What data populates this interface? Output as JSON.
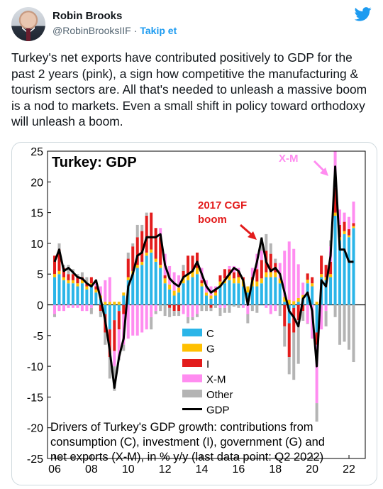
{
  "tweet": {
    "author_name": "Robin Brooks",
    "handle": "@RobinBrooksIIF",
    "separator": "·",
    "follow_label": "Takip et",
    "text": "Turkey's net exports have contributed positively to GDP for the past 2 years (pink), a sign how competitive the manufacturing & tourism sectors are. All that's needed to unleash a massive boom is a nod to markets. Even a small shift in policy toward orthodoxy will unleash a boom.",
    "icons": {
      "logo": "twitter-bird-icon",
      "avatar": "avatar-photo"
    },
    "colors": {
      "link": "#1d9bf0",
      "logo": "#1d9bf0"
    }
  },
  "chart_data": {
    "type": "bar",
    "title": "Turkey: GDP",
    "ylim": [
      -25,
      25
    ],
    "yticks": [
      25,
      20,
      15,
      10,
      5,
      0,
      -5,
      -10,
      -15,
      -20,
      -25
    ],
    "xticks": [
      "06",
      "08",
      "10",
      "12",
      "14",
      "16",
      "18",
      "20",
      "22"
    ],
    "x_range": [
      2006.0,
      2022.5
    ],
    "legend": {
      "placement": "bottom-left",
      "items": [
        {
          "label": "C",
          "color": "#2bb5e8"
        },
        {
          "label": "G",
          "color": "#ffc000"
        },
        {
          "label": "I",
          "color": "#e31c1c"
        },
        {
          "label": "X-M",
          "color": "#ff8cf0"
        },
        {
          "label": "Other",
          "color": "#b4b4b4"
        },
        {
          "label": "GDP",
          "color": "#000000"
        }
      ]
    },
    "annotations": [
      {
        "text": "X-M",
        "color": "#ff8cf0"
      },
      {
        "text": "2017 CGF",
        "color": "#e31c1c"
      },
      {
        "text": "boom",
        "color": "#e31c1c"
      }
    ],
    "caption_lines": [
      "Drivers of Turkey's GDP growth: contributions from",
      "consumption (C), investment (I), government (G) and",
      "net exports (X-M), in % y/y (last data point: Q2 2022)"
    ],
    "x": [
      2006.0,
      2006.25,
      2006.5,
      2006.75,
      2007.0,
      2007.25,
      2007.5,
      2007.75,
      2008.0,
      2008.25,
      2008.5,
      2008.75,
      2009.0,
      2009.25,
      2009.5,
      2009.75,
      2010.0,
      2010.25,
      2010.5,
      2010.75,
      2011.0,
      2011.25,
      2011.5,
      2011.75,
      2012.0,
      2012.25,
      2012.5,
      2012.75,
      2013.0,
      2013.25,
      2013.5,
      2013.75,
      2014.0,
      2014.25,
      2014.5,
      2014.75,
      2015.0,
      2015.25,
      2015.5,
      2015.75,
      2016.0,
      2016.25,
      2016.5,
      2016.75,
      2017.0,
      2017.25,
      2017.5,
      2017.75,
      2018.0,
      2018.25,
      2018.5,
      2018.75,
      2019.0,
      2019.25,
      2019.5,
      2019.75,
      2020.0,
      2020.25,
      2020.5,
      2020.75,
      2021.0,
      2021.25,
      2021.5,
      2021.75,
      2022.0,
      2022.25
    ],
    "series": [
      {
        "name": "C",
        "values": [
          4.5,
          5.0,
          4.0,
          3.5,
          3.5,
          3.0,
          3.5,
          2.5,
          3.0,
          2.0,
          1.0,
          -1.5,
          -4.0,
          -2.5,
          -1.0,
          1.5,
          4.0,
          5.0,
          6.0,
          6.5,
          8.0,
          8.5,
          7.0,
          6.0,
          3.5,
          2.5,
          1.5,
          2.0,
          3.5,
          4.0,
          4.5,
          5.0,
          3.0,
          1.5,
          1.0,
          1.5,
          3.0,
          3.5,
          4.0,
          3.5,
          3.5,
          3.0,
          2.0,
          3.0,
          3.0,
          3.5,
          4.5,
          4.5,
          4.5,
          3.5,
          0.5,
          -3.0,
          -0.5,
          0.5,
          1.0,
          3.5,
          3.0,
          -4.5,
          4.5,
          4.0,
          4.5,
          14.5,
          10.5,
          11.5,
          11.0,
          12.5
        ]
      },
      {
        "name": "G",
        "values": [
          0.5,
          0.5,
          0.5,
          0.5,
          0.5,
          0.5,
          0.5,
          0.5,
          0.5,
          0.5,
          0.5,
          0.5,
          0.5,
          0.5,
          0.5,
          0.5,
          0.5,
          0.5,
          0.5,
          0.5,
          0.5,
          0.5,
          0.5,
          0.5,
          0.8,
          0.8,
          0.8,
          0.8,
          1.0,
          1.0,
          1.0,
          1.0,
          0.5,
          0.5,
          0.5,
          0.5,
          0.8,
          0.8,
          0.8,
          0.8,
          1.0,
          1.0,
          1.0,
          1.0,
          0.8,
          0.8,
          0.8,
          0.8,
          0.8,
          0.8,
          0.8,
          0.8,
          0.6,
          0.6,
          0.6,
          0.6,
          0.5,
          0.5,
          0.5,
          0.5,
          0.5,
          0.5,
          0.5,
          0.5,
          0.3,
          0.3
        ]
      },
      {
        "name": "I",
        "values": [
          3.0,
          3.5,
          1.5,
          1.0,
          1.0,
          1.0,
          0.5,
          0.5,
          1.0,
          0.5,
          -1.0,
          -3.0,
          -4.5,
          -5.0,
          -3.0,
          -1.5,
          3.0,
          4.0,
          4.5,
          5.0,
          6.0,
          6.0,
          5.0,
          4.5,
          0.5,
          -0.5,
          -1.0,
          -1.0,
          1.0,
          3.0,
          2.5,
          2.5,
          0.5,
          0.0,
          -0.5,
          0.5,
          1.0,
          1.5,
          1.0,
          1.0,
          1.0,
          0.5,
          0.0,
          0.5,
          2.0,
          3.0,
          3.5,
          3.0,
          1.5,
          0.0,
          -3.5,
          -5.5,
          -4.0,
          -2.5,
          -1.0,
          1.0,
          1.0,
          -2.0,
          3.0,
          2.0,
          2.0,
          4.0,
          2.0,
          1.5,
          1.0,
          0.5
        ]
      },
      {
        "name": "X-M",
        "values": [
          -1.5,
          -1.0,
          -1.0,
          -0.5,
          -0.5,
          -0.5,
          -1.0,
          -1.0,
          -0.5,
          0.5,
          1.5,
          3.5,
          4.0,
          -2.5,
          -4.5,
          -5.0,
          -5.5,
          -5.0,
          -5.0,
          -4.5,
          -4.0,
          -2.0,
          -1.0,
          1.5,
          3.5,
          3.0,
          3.0,
          2.0,
          -1.5,
          -2.0,
          -2.0,
          -1.5,
          2.0,
          2.0,
          1.5,
          0.5,
          -0.5,
          -0.5,
          0.5,
          1.0,
          0.5,
          -0.5,
          -1.5,
          1.5,
          2.5,
          1.5,
          -0.5,
          -1.5,
          -1.0,
          2.5,
          7.5,
          9.5,
          8.5,
          5.5,
          2.0,
          -3.0,
          -5.5,
          -9.5,
          -4.0,
          -1.0,
          2.5,
          6.0,
          2.5,
          1.5,
          2.0,
          3.5
        ]
      },
      {
        "name": "Other",
        "values": [
          -0.5,
          1.0,
          0.5,
          1.5,
          0.8,
          0.5,
          0.8,
          1.0,
          -1.0,
          0.5,
          -1.0,
          -2.0,
          -3.5,
          -4.0,
          -0.5,
          -1.0,
          1.0,
          0.5,
          2.0,
          1.0,
          0.5,
          -2.0,
          -0.5,
          -1.0,
          -1.8,
          -1.5,
          -0.8,
          -0.8,
          1.0,
          -1.0,
          -0.5,
          -0.5,
          -1.0,
          -1.0,
          -0.5,
          -0.5,
          -1.3,
          -0.8,
          -1.3,
          -0.3,
          -0.5,
          0.0,
          -1.5,
          -1.0,
          -1.3,
          2.2,
          2.7,
          1.7,
          0.7,
          -1.8,
          -3.3,
          -2.8,
          -7.7,
          -7.1,
          -1.6,
          -0.1,
          0.0,
          -3.0,
          0.0,
          -2.5,
          1.0,
          -2.0,
          -6.5,
          -6.0,
          -7.3,
          -9.3
        ]
      },
      {
        "name": "GDP",
        "values": [
          7.0,
          9.0,
          5.5,
          6.0,
          5.3,
          4.5,
          4.3,
          3.5,
          3.0,
          4.0,
          1.0,
          -2.5,
          -7.5,
          -13.5,
          -8.5,
          -5.5,
          3.0,
          5.0,
          8.0,
          8.5,
          11.0,
          11.0,
          11.0,
          11.5,
          6.5,
          4.3,
          3.5,
          3.0,
          4.5,
          5.0,
          5.5,
          7.0,
          5.0,
          3.0,
          2.0,
          2.5,
          3.0,
          4.0,
          5.0,
          6.0,
          5.5,
          4.0,
          0.0,
          4.0,
          7.0,
          10.8,
          7.0,
          5.5,
          6.0,
          5.0,
          2.0,
          -1.0,
          -2.0,
          -3.5,
          1.0,
          2.0,
          -1.0,
          -10.0,
          4.0,
          3.0,
          8.0,
          22.5,
          9.0,
          9.0,
          7.0,
          7.0
        ]
      }
    ]
  }
}
